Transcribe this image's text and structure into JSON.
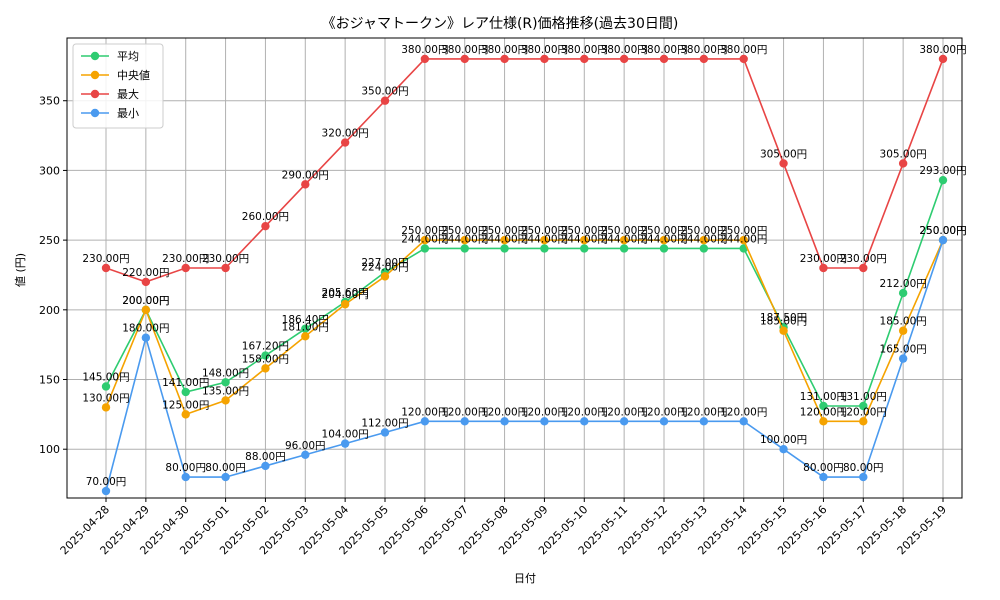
{
  "chart_data": {
    "type": "line",
    "title": "《おジャマトークン》レア仕様(R)価格推移(過去30日間)",
    "xlabel": "日付",
    "ylabel": "値 (円)",
    "ylim": [
      65,
      395
    ],
    "yticks": [
      100,
      150,
      200,
      250,
      300,
      350
    ],
    "grid": true,
    "legend_position": "top-left",
    "value_suffix": "円",
    "categories": [
      "2025-04-28",
      "2025-04-29",
      "2025-04-30",
      "2025-05-01",
      "2025-05-02",
      "2025-05-03",
      "2025-05-04",
      "2025-05-05",
      "2025-05-06",
      "2025-05-07",
      "2025-05-08",
      "2025-05-09",
      "2025-05-10",
      "2025-05-11",
      "2025-05-12",
      "2025-05-13",
      "2025-05-14",
      "2025-05-15",
      "2025-05-16",
      "2025-05-17",
      "2025-05-18",
      "2025-05-19"
    ],
    "series": [
      {
        "name": "平均",
        "color": "#2ecc71",
        "values": [
          145,
          200,
          141,
          148,
          167.2,
          186.4,
          205.6,
          227,
          244,
          244,
          244,
          244,
          244,
          244,
          244,
          244,
          244,
          187.5,
          131,
          131,
          212,
          293
        ]
      },
      {
        "name": "中央値",
        "color": "#f5a300",
        "values": [
          130,
          200,
          125,
          135,
          158,
          181,
          204,
          224,
          250,
          250,
          250,
          250,
          250,
          250,
          250,
          250,
          250,
          185,
          120,
          120,
          185,
          250
        ]
      },
      {
        "name": "最大",
        "color": "#e84545",
        "values": [
          230,
          220,
          230,
          230,
          260,
          290,
          320,
          350,
          380,
          380,
          380,
          380,
          380,
          380,
          380,
          380,
          380,
          305,
          230,
          230,
          305,
          380
        ]
      },
      {
        "name": "最小",
        "color": "#4a9aef",
        "values": [
          70,
          180,
          80,
          80,
          88,
          96,
          104,
          112,
          120,
          120,
          120,
          120,
          120,
          120,
          120,
          120,
          120,
          100,
          80,
          80,
          165,
          250
        ]
      }
    ]
  }
}
